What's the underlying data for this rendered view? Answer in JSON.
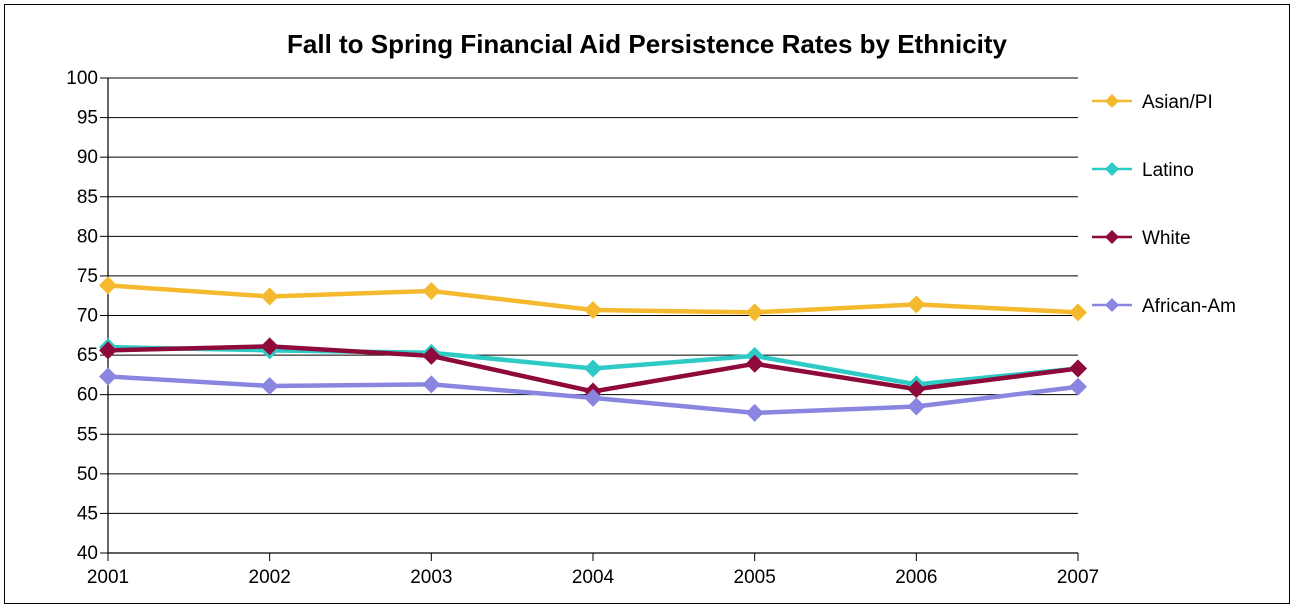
{
  "chart_data": {
    "type": "line",
    "title": "Fall to Spring Financial Aid Persistence Rates by Ethnicity",
    "xlabel": "",
    "ylabel": "",
    "x": [
      "2001",
      "2002",
      "2003",
      "2004",
      "2005",
      "2006",
      "2007"
    ],
    "ylim": [
      40,
      100
    ],
    "yticks": [
      "40",
      "45",
      "50",
      "55",
      "60",
      "65",
      "70",
      "75",
      "80",
      "85",
      "90",
      "95",
      "100"
    ],
    "grid": true,
    "legend_position": "right",
    "series": [
      {
        "name": "Asian/PI",
        "color": "#F4B92E",
        "marker": "diamond",
        "values": [
          73.8,
          72.4,
          73.1,
          70.7,
          70.4,
          71.4,
          70.4
        ]
      },
      {
        "name": "Latino",
        "color": "#2ECBC6",
        "marker": "diamond",
        "values": [
          66.0,
          65.6,
          65.3,
          63.3,
          64.9,
          61.3,
          63.3
        ]
      },
      {
        "name": "White",
        "color": "#8E0A3A",
        "marker": "diamond",
        "values": [
          65.6,
          66.1,
          64.9,
          60.4,
          63.9,
          60.7,
          63.3
        ]
      },
      {
        "name": "African-Am",
        "color": "#8A86E0",
        "marker": "diamond",
        "values": [
          62.3,
          61.1,
          61.3,
          59.6,
          57.7,
          58.5,
          61.0
        ]
      }
    ]
  }
}
